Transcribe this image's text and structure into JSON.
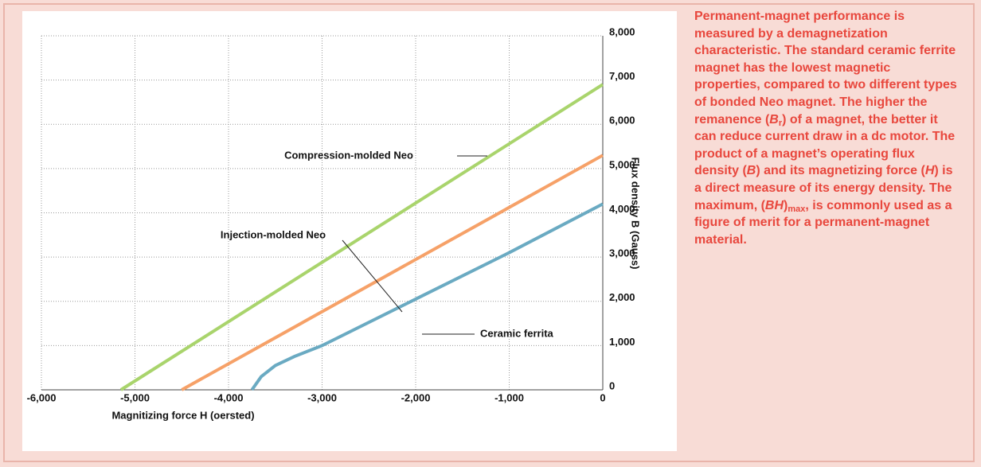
{
  "chart_data": {
    "type": "line",
    "x_label": "Magnitizing force H (oersted)",
    "y_label": "Flux density B (Gauss)",
    "xlim": [
      -6000,
      0
    ],
    "ylim": [
      0,
      8000
    ],
    "xticks": [
      {
        "value": -6000,
        "label": "-6,000"
      },
      {
        "value": -5000,
        "label": "-5,000"
      },
      {
        "value": -4000,
        "label": "-4,000"
      },
      {
        "value": -3000,
        "label": "-3,000"
      },
      {
        "value": -2000,
        "label": "-2,000"
      },
      {
        "value": -1000,
        "label": "-1,000"
      },
      0
    ],
    "yticks": [
      0,
      {
        "value": 1000,
        "label": "1,000"
      },
      {
        "value": 2000,
        "label": "2,000"
      },
      {
        "value": 3000,
        "label": "3,000"
      },
      {
        "value": 4000,
        "label": "4,000"
      },
      {
        "value": 5000,
        "label": "5,000"
      },
      {
        "value": 6000,
        "label": "6,000"
      },
      {
        "value": 7000,
        "label": "7,000"
      },
      {
        "value": 8000,
        "label": "8,000"
      }
    ],
    "grid": true,
    "series": [
      {
        "name": "Compression-molded Neo",
        "color": "#a9d46c",
        "x": [
          -5150,
          0
        ],
        "values": [
          0,
          6900
        ]
      },
      {
        "name": "Injection-molded Neo",
        "color": "#f6a168",
        "x": [
          -4500,
          0
        ],
        "values": [
          0,
          5300
        ]
      },
      {
        "name": "Ceramic ferrita",
        "color": "#6aaac2",
        "x": [
          -3750,
          -3650,
          -3500,
          -3300,
          -3000,
          -2000,
          -1000,
          0
        ],
        "values": [
          0,
          300,
          550,
          750,
          1000,
          2050,
          3100,
          4200
        ]
      }
    ]
  },
  "caption": [
    "Permanent-magnet performance is measured by a demagnetization characteristic. The standard ceramic ferrite magnet has the lowest magnetic properties, compared to two different types of bonded Neo magnet. The higher the remanence (",
    "B",
    "r",
    ") of a magnet, the better it can reduce current draw in a dc motor. The product of a magnet’s operating flux density (",
    "B",
    ") and its magnetizing force (",
    "H",
    ") is a direct measure of its energy density. The maximum, (",
    "BH",
    ")",
    "max",
    ", is commonly used as a figure of merit for a permanent-magnet material."
  ]
}
